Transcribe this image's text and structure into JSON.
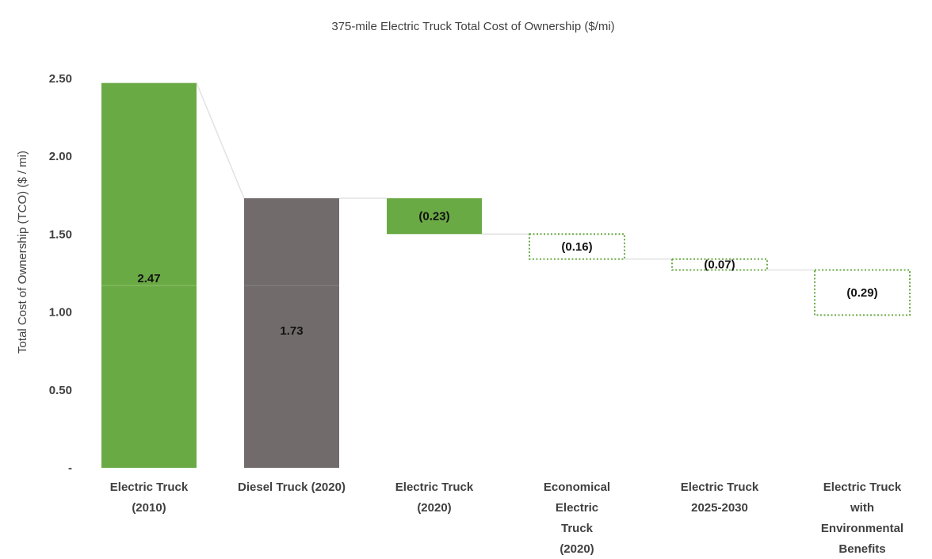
{
  "chart_data": {
    "type": "bar",
    "subtype": "waterfall",
    "title": "375-mile Electric Truck Total Cost of Ownership ($/mi)",
    "xlabel": "",
    "ylabel": "Total Cost of Ownership (TCO) ($ / mi)",
    "ylim": [
      0,
      2.7
    ],
    "yticks": [
      {
        "value": 0,
        "label": "-"
      },
      {
        "value": 0.5,
        "label": "0.50"
      },
      {
        "value": 1.0,
        "label": "1.00"
      },
      {
        "value": 1.5,
        "label": "1.50"
      },
      {
        "value": 2.0,
        "label": "2.00"
      },
      {
        "value": 2.5,
        "label": "2.50"
      }
    ],
    "grid": false,
    "categories": [
      [
        "Electric Truck",
        "(2010)"
      ],
      [
        "Diesel Truck (2020)"
      ],
      [
        "Electric Truck",
        "(2020)"
      ],
      [
        "Economical",
        "Electric",
        "Truck",
        "(2020)"
      ],
      [
        "Electric Truck",
        "2025-2030"
      ],
      [
        "Electric Truck",
        "with",
        "Environmental",
        "Benefits"
      ]
    ],
    "bars": [
      {
        "kind": "total",
        "start": 0,
        "end": 2.47,
        "label": "2.47",
        "color": "#6aaa45",
        "style": "solid"
      },
      {
        "kind": "total",
        "start": 0,
        "end": 1.73,
        "label": "1.73",
        "color": "#716b6b",
        "style": "solid"
      },
      {
        "kind": "delta",
        "start": 1.73,
        "end": 1.5,
        "label": "(0.23)",
        "color": "#6aaa45",
        "style": "solid"
      },
      {
        "kind": "delta",
        "start": 1.5,
        "end": 1.34,
        "label": "(0.16)",
        "color": "#6aaa45",
        "style": "dotted"
      },
      {
        "kind": "delta",
        "start": 1.34,
        "end": 1.27,
        "label": "(0.07)",
        "color": "#6aaa45",
        "style": "dotted"
      },
      {
        "kind": "delta",
        "start": 1.27,
        "end": 0.98,
        "label": "(0.29)",
        "color": "#6aaa45",
        "style": "dotted"
      }
    ]
  }
}
